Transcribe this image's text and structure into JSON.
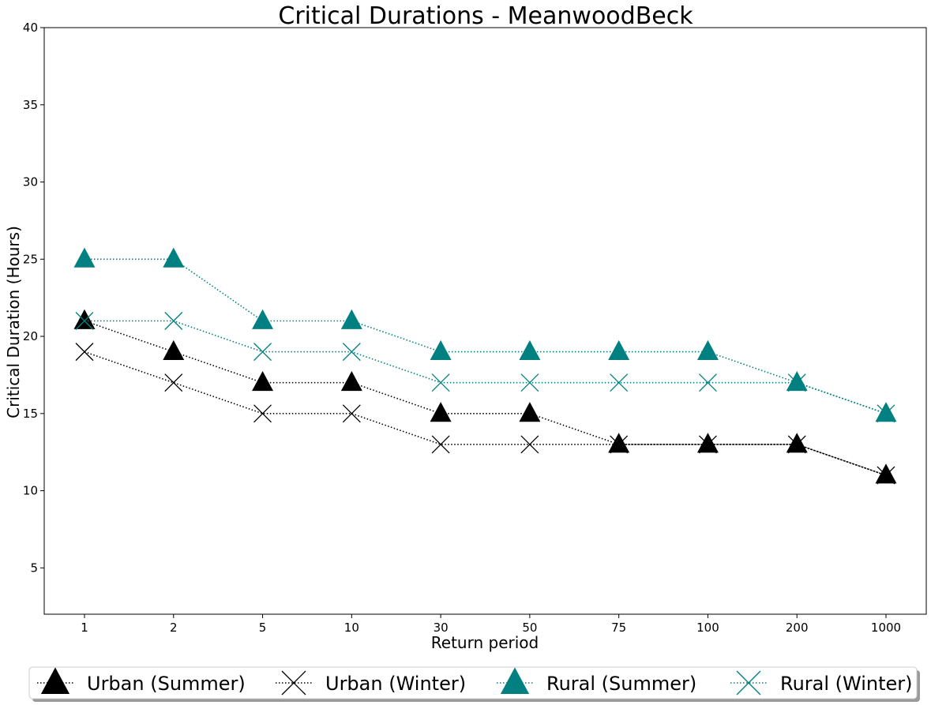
{
  "chart_data": {
    "type": "line",
    "title": "Critical Durations - MeanwoodBeck",
    "xlabel": "Return period",
    "ylabel": "Critical Duration (Hours)",
    "categories": [
      "1",
      "2",
      "5",
      "10",
      "30",
      "50",
      "75",
      "100",
      "200",
      "1000"
    ],
    "ylim": [
      2,
      40
    ],
    "yticks": [
      5,
      10,
      15,
      20,
      25,
      30,
      35,
      40
    ],
    "grid": false,
    "legend_position": "bottom",
    "series": [
      {
        "name": "Urban (Summer)",
        "color": "#000000",
        "marker": "triangle",
        "values": [
          21,
          19,
          17,
          17,
          15,
          15,
          13,
          13,
          13,
          11
        ]
      },
      {
        "name": "Urban (Winter)",
        "color": "#000000",
        "marker": "x",
        "values": [
          19,
          17,
          15,
          15,
          13,
          13,
          13,
          13,
          13,
          11
        ]
      },
      {
        "name": "Rural (Summer)",
        "color": "#008080",
        "marker": "triangle",
        "values": [
          25,
          25,
          21,
          21,
          19,
          19,
          19,
          19,
          17,
          15
        ]
      },
      {
        "name": "Rural (Winter)",
        "color": "#008080",
        "marker": "x",
        "values": [
          21,
          21,
          19,
          19,
          17,
          17,
          17,
          17,
          17,
          15
        ]
      }
    ]
  }
}
